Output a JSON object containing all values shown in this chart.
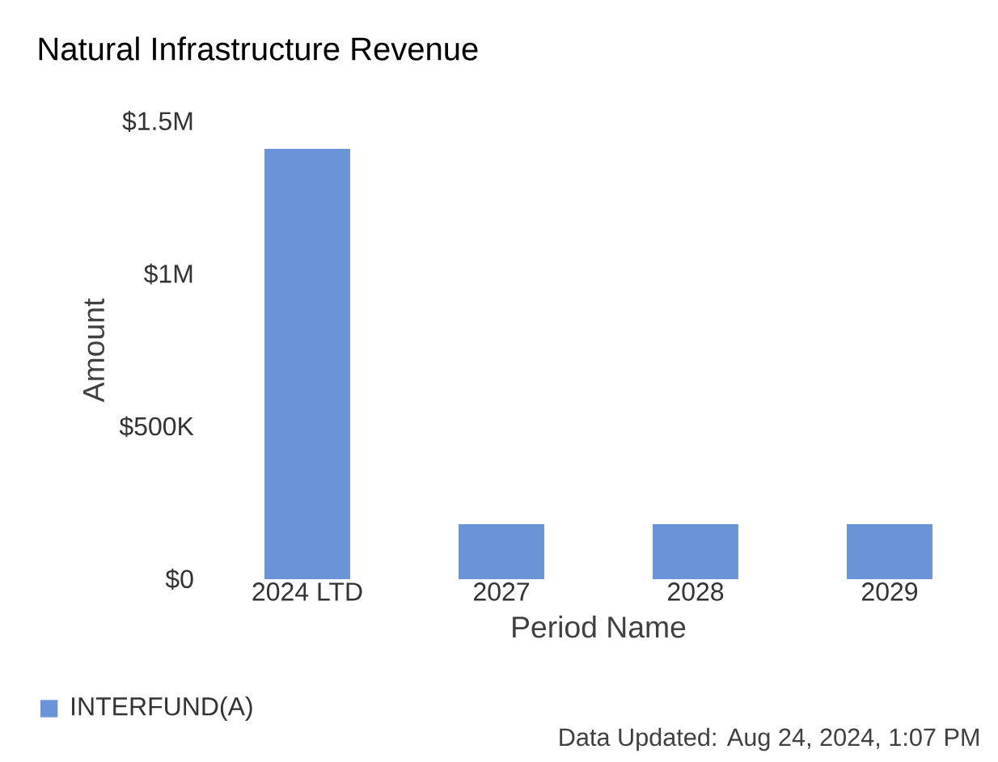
{
  "chart_data": {
    "type": "bar",
    "title": "Natural Infrastructure Revenue",
    "xlabel": "Period Name",
    "ylabel": "Amount",
    "categories": [
      "2024 LTD",
      "2027",
      "2028",
      "2029"
    ],
    "series": [
      {
        "name": "INTERFUND(A)",
        "color": "#6a93d8",
        "values": [
          1410000,
          180000,
          180000,
          180000
        ]
      }
    ],
    "ylim": [
      0,
      1500000
    ],
    "yticks": [
      {
        "value": 0,
        "label": "$0"
      },
      {
        "value": 500000,
        "label": "$500K"
      },
      {
        "value": 1000000,
        "label": "$1M"
      },
      {
        "value": 1500000,
        "label": "$1.5M"
      }
    ],
    "legend": "bottom left",
    "annotations": [
      "Data Updated: Aug 24, 2024, 1:07 PM"
    ]
  }
}
